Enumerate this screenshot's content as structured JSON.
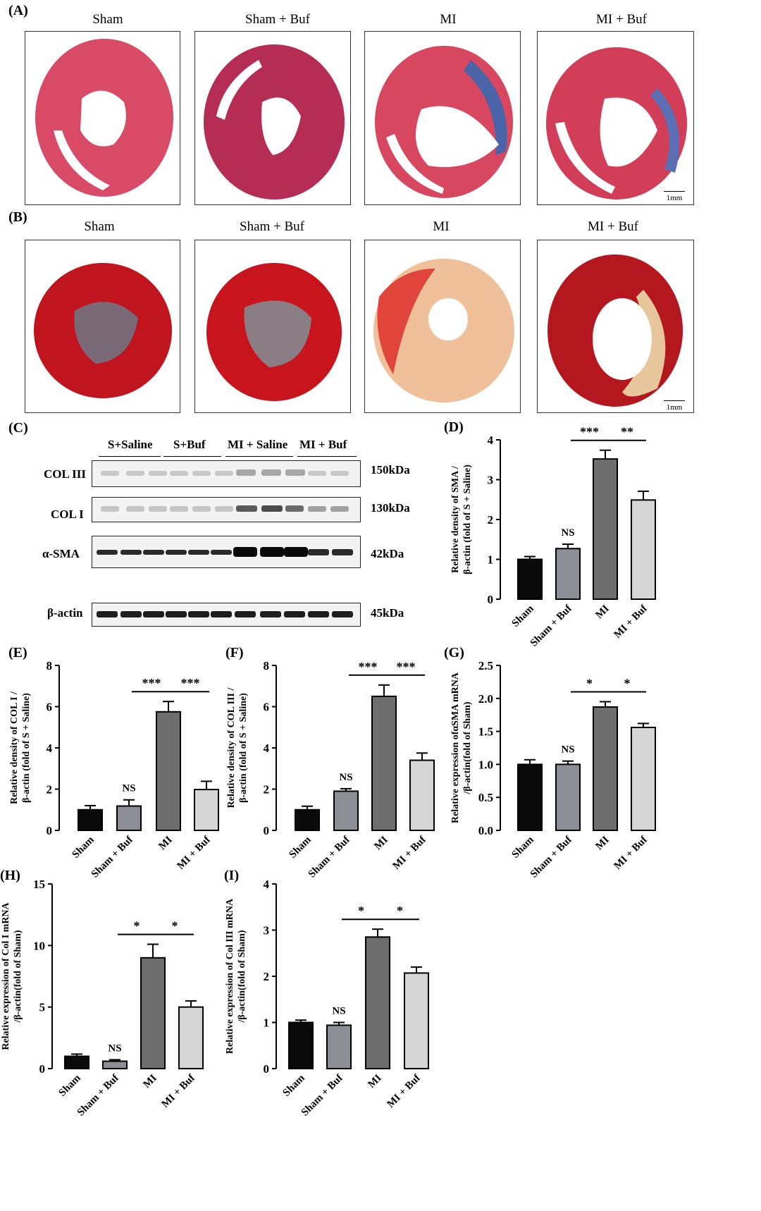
{
  "panels": {
    "a": "(A)",
    "b": "(B)",
    "c": "(C)"
  },
  "groups": [
    "Sham",
    "Sham + Buf",
    "MI",
    "MI + Buf"
  ],
  "scalebar": "1mm",
  "western_blot": {
    "lanes": [
      "S+Saline",
      "S+Buf",
      "MI + Saline",
      "MI + Buf"
    ],
    "rows": [
      {
        "name": "COL III",
        "kda": "150kDa"
      },
      {
        "name": "COL I",
        "kda": "130kDa"
      },
      {
        "name": "α-SMA",
        "kda": "42kDa"
      },
      {
        "name": "β-actin",
        "kda": "45kDa"
      }
    ]
  },
  "colors": {
    "sham": "#0a0a0a",
    "sham_buf": "#8e8e96",
    "mi": "#6e6e6e",
    "mi_buf": "#d6d6d6"
  },
  "chart_data": [
    {
      "panel": "(D)",
      "type": "bar",
      "categories": [
        "Sham",
        "Sham + Buf",
        "MI",
        "MI + Buf"
      ],
      "values": [
        1.0,
        1.27,
        3.52,
        2.49
      ],
      "errors": [
        0.07,
        0.11,
        0.22,
        0.22
      ],
      "ylabel_lines": [
        "Relative density of  SMA /",
        "β-actin (fold of S + Saline)"
      ],
      "ylim": [
        0,
        4
      ],
      "yticks": [
        "0",
        "1",
        "2",
        "3",
        "4"
      ],
      "annotations": [
        {
          "text": "NS",
          "over": 1
        },
        {
          "text": "***",
          "from": 1,
          "to": 2
        },
        {
          "text": "**",
          "from": 2,
          "to": 3
        }
      ]
    },
    {
      "panel": "(E)",
      "type": "bar",
      "categories": [
        "Sham",
        "Sham + Buf",
        "MI",
        "MI + Buf"
      ],
      "values": [
        1.0,
        1.18,
        5.75,
        1.98
      ],
      "errors": [
        0.2,
        0.3,
        0.5,
        0.4
      ],
      "ylabel_lines": [
        "Relative density of  COL I /",
        "β-actin (fold of S + Saline)"
      ],
      "ylim": [
        0,
        8
      ],
      "yticks": [
        "0",
        "2",
        "4",
        "6",
        "8"
      ],
      "annotations": [
        {
          "text": "NS",
          "over": 1
        },
        {
          "text": "***",
          "from": 1,
          "to": 2
        },
        {
          "text": "***",
          "from": 2,
          "to": 3
        }
      ]
    },
    {
      "panel": "(F)",
      "type": "bar",
      "categories": [
        "Sham",
        "Sham + Buf",
        "MI",
        "MI + Buf"
      ],
      "values": [
        1.0,
        1.9,
        6.5,
        3.4
      ],
      "errors": [
        0.17,
        0.12,
        0.55,
        0.35
      ],
      "ylabel_lines": [
        "Relative density of  COL III /",
        "β-actin (fold of S + Saline)"
      ],
      "ylim": [
        0,
        8
      ],
      "yticks": [
        "0",
        "2",
        "4",
        "6",
        "8"
      ],
      "annotations": [
        {
          "text": "NS",
          "over": 1
        },
        {
          "text": "***",
          "from": 1,
          "to": 2
        },
        {
          "text": "***",
          "from": 2,
          "to": 3
        }
      ]
    },
    {
      "panel": "(G)",
      "type": "bar",
      "categories": [
        "Sham",
        "Sham + Buf",
        "MI",
        "MI + Buf"
      ],
      "values": [
        1.0,
        1.0,
        1.87,
        1.56
      ],
      "errors": [
        0.07,
        0.05,
        0.08,
        0.06
      ],
      "ylabel_lines": [
        "Relative expression ofαSMA mRNA",
        "/β-actin(fold of Sham)"
      ],
      "ylim": [
        0,
        2.5
      ],
      "yticks": [
        "0.0",
        "0.5",
        "1.0",
        "1.5",
        "2.0",
        "2.5"
      ],
      "annotations": [
        {
          "text": "NS",
          "over": 1
        },
        {
          "text": "*",
          "from": 1,
          "to": 2
        },
        {
          "text": "*",
          "from": 2,
          "to": 3
        }
      ]
    },
    {
      "panel": "(H)",
      "type": "bar",
      "categories": [
        "Sham",
        "Sham + Buf",
        "MI",
        "MI + Buf"
      ],
      "values": [
        1.0,
        0.6,
        9.0,
        5.0
      ],
      "errors": [
        0.18,
        0.12,
        1.1,
        0.5
      ],
      "ylabel_lines": [
        "Relative expression of Col I mRNA",
        "/β-actin(fold of Sham)"
      ],
      "ylim": [
        0,
        15
      ],
      "yticks": [
        "0",
        "5",
        "10",
        "15"
      ],
      "annotations": [
        {
          "text": "NS",
          "over": 1
        },
        {
          "text": "*",
          "from": 1,
          "to": 2
        },
        {
          "text": "*",
          "from": 2,
          "to": 3
        }
      ]
    },
    {
      "panel": "(I)",
      "type": "bar",
      "categories": [
        "Sham",
        "Sham + Buf",
        "MI",
        "MI + Buf"
      ],
      "values": [
        1.0,
        0.94,
        2.85,
        2.07
      ],
      "errors": [
        0.05,
        0.06,
        0.17,
        0.13
      ],
      "ylabel_lines": [
        "Relative expression of Col III mRNA",
        "/β-actin(fold of Sham)"
      ],
      "ylim": [
        0,
        4
      ],
      "yticks": [
        "0",
        "1",
        "2",
        "3",
        "4"
      ],
      "annotations": [
        {
          "text": "NS",
          "over": 1
        },
        {
          "text": "*",
          "from": 1,
          "to": 2
        },
        {
          "text": "*",
          "from": 2,
          "to": 3
        }
      ]
    }
  ]
}
